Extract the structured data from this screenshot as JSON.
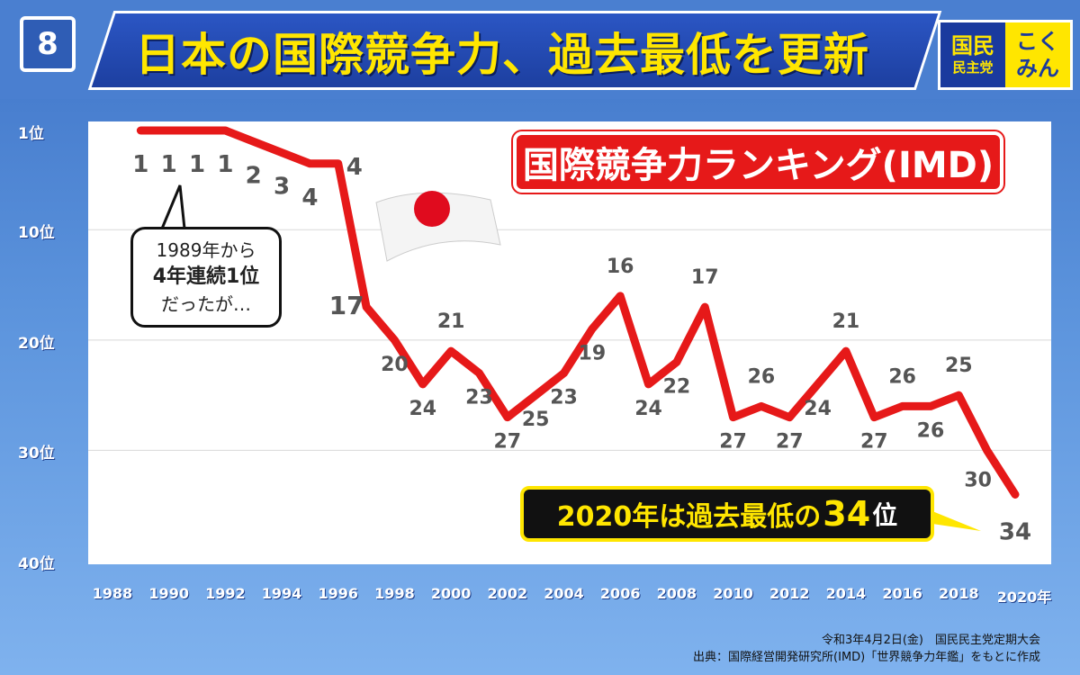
{
  "header": {
    "slide_number": "8",
    "title": "日本の国際競争力、過去最低を更新",
    "logo": {
      "left_line1": "国民",
      "left_line2": "民主党",
      "right_line1": "こく",
      "right_line2": "みん"
    }
  },
  "chart_data": {
    "type": "line",
    "title": "国際競争力ランキング(IMD)",
    "y_axis": {
      "ticks": [
        "1位",
        "10位",
        "20位",
        "30位",
        "40位"
      ],
      "tick_values": [
        1,
        10,
        20,
        30,
        40
      ],
      "inverted": true,
      "range": [
        1,
        40
      ]
    },
    "x_axis": {
      "ticks": [
        "1988",
        "1990",
        "1992",
        "1994",
        "1996",
        "1998",
        "2000",
        "2002",
        "2004",
        "2006",
        "2008",
        "2010",
        "2012",
        "2014",
        "2016",
        "2018",
        "2020年"
      ],
      "range": [
        1988,
        2020
      ]
    },
    "series": [
      {
        "color": "#e61919",
        "points": [
          {
            "year": 1989,
            "rank": 1
          },
          {
            "year": 1990,
            "rank": 1
          },
          {
            "year": 1991,
            "rank": 1
          },
          {
            "year": 1992,
            "rank": 1
          },
          {
            "year": 1993,
            "rank": 2
          },
          {
            "year": 1994,
            "rank": 3
          },
          {
            "year": 1995,
            "rank": 4
          },
          {
            "year": 1996,
            "rank": 4
          },
          {
            "year": 1997,
            "rank": 17
          },
          {
            "year": 1998,
            "rank": 20
          },
          {
            "year": 1999,
            "rank": 24
          },
          {
            "year": 2000,
            "rank": 21
          },
          {
            "year": 2001,
            "rank": 23
          },
          {
            "year": 2002,
            "rank": 27
          },
          {
            "year": 2003,
            "rank": 25
          },
          {
            "year": 2004,
            "rank": 23
          },
          {
            "year": 2005,
            "rank": 19
          },
          {
            "year": 2006,
            "rank": 16
          },
          {
            "year": 2007,
            "rank": 24
          },
          {
            "year": 2008,
            "rank": 22
          },
          {
            "year": 2009,
            "rank": 17
          },
          {
            "year": 2010,
            "rank": 27
          },
          {
            "year": 2011,
            "rank": 26
          },
          {
            "year": 2012,
            "rank": 27
          },
          {
            "year": 2013,
            "rank": 24
          },
          {
            "year": 2014,
            "rank": 21
          },
          {
            "year": 2015,
            "rank": 27
          },
          {
            "year": 2016,
            "rank": 26
          },
          {
            "year": 2017,
            "rank": 26
          },
          {
            "year": 2018,
            "rank": 25
          },
          {
            "year": 2019,
            "rank": 30
          },
          {
            "year": 2020,
            "rank": 34
          }
        ]
      }
    ],
    "grid": true,
    "annotations": {
      "bubble_line1": "1989年から",
      "bubble_line2": "4年連続1位",
      "bubble_line3": "だったが…",
      "callout_part1": "2020年は過去最低の",
      "callout_part2": "34",
      "callout_part3": "位"
    }
  },
  "footer": {
    "line1": "令和3年4月2日(金)　国民民主党定期大会",
    "line2": "出典：国際経営開発研究所(IMD)「世界競争力年鑑」をもとに作成"
  }
}
